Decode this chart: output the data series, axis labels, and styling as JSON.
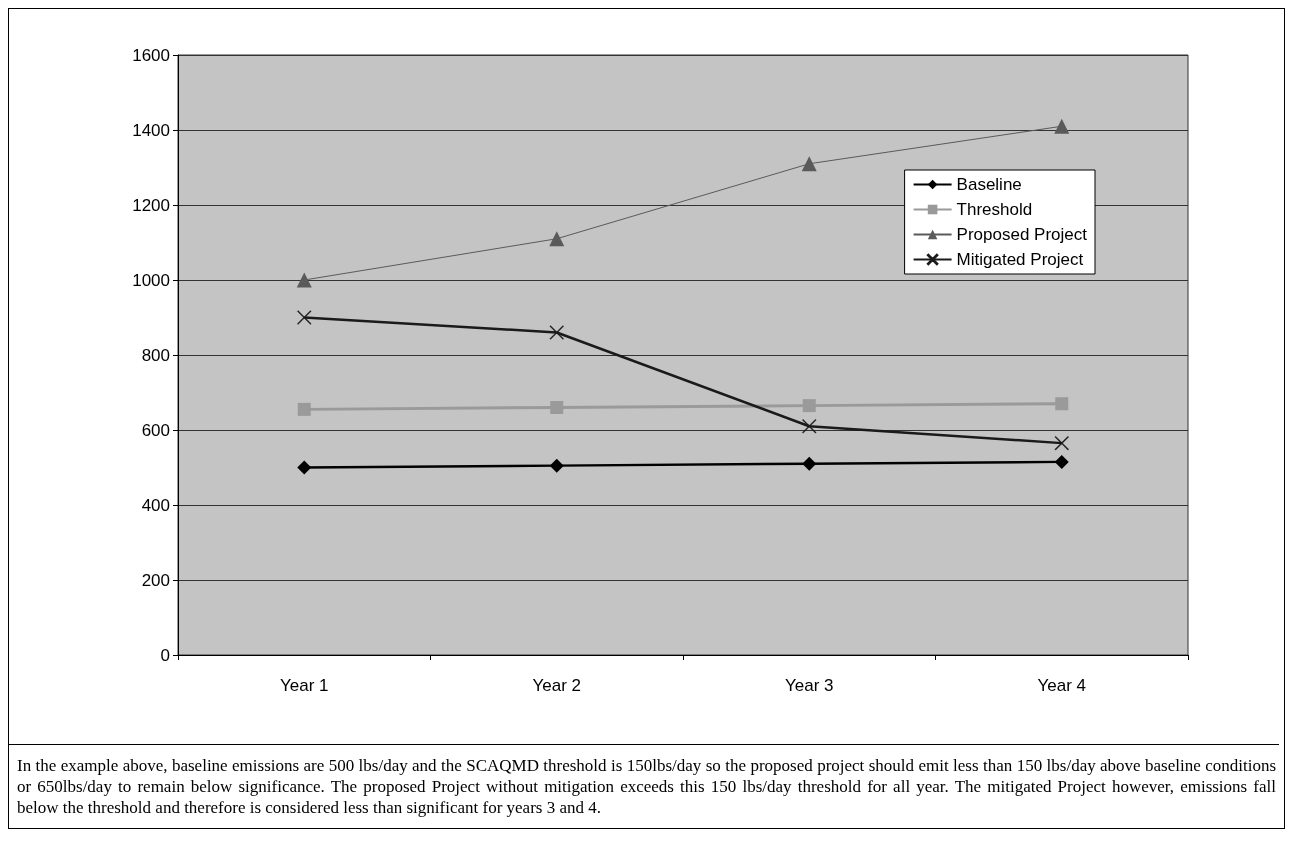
{
  "chart_data": {
    "type": "line",
    "categories": [
      "Year 1",
      "Year 2",
      "Year 3",
      "Year 4"
    ],
    "series": [
      {
        "name": "Baseline",
        "color": "#000000",
        "marker": "diamond",
        "values": [
          500,
          505,
          510,
          515
        ]
      },
      {
        "name": "Threshold",
        "color": "#9a9a9a",
        "marker": "square",
        "values": [
          655,
          660,
          665,
          670
        ]
      },
      {
        "name": "Proposed Project",
        "color": "#5a5a5a",
        "marker": "triangle",
        "values": [
          1000,
          1110,
          1310,
          1410
        ]
      },
      {
        "name": "Mitigated Project",
        "color": "#1a1a1a",
        "marker": "cross",
        "values": [
          900,
          860,
          610,
          565
        ]
      }
    ],
    "ylim": [
      0,
      1600
    ],
    "yticks": [
      0,
      200,
      400,
      600,
      800,
      1000,
      1200,
      1400,
      1600
    ],
    "grid": "y",
    "legend": "right",
    "annotations": [
      "In the example above, baseline emissions are 500 lbs/day and the SCAQMD threshold is 150lbs/day so the proposed project should emit less than 150 lbs/day above baseline conditions or 650lbs/day to remain below significance. The proposed Project without mitigation exceeds this 150 lbs/day threshold for all year. The mitigated Project however, emissions fall below the threshold and therefore is considered less than significant for years 3 and 4."
    ]
  }
}
